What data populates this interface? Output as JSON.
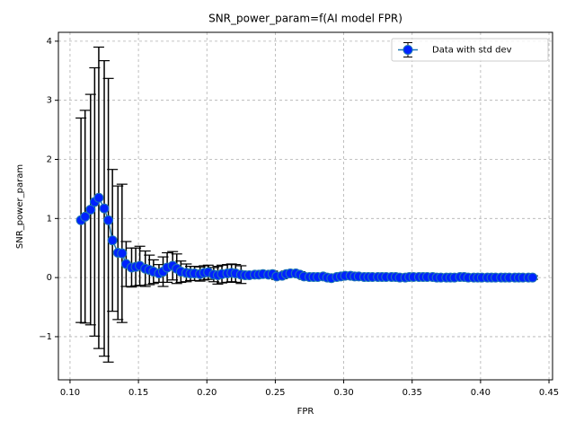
{
  "chart_data": {
    "type": "errorbar",
    "title": "SNR_power_param=f(AI model FPR)",
    "x_label": "FPR",
    "y_label": "SNR_power_param",
    "x": [
      0.108,
      0.111,
      0.115,
      0.118,
      0.121,
      0.125,
      0.128,
      0.131,
      0.135,
      0.138,
      0.141,
      0.145,
      0.148,
      0.151,
      0.155,
      0.158,
      0.161,
      0.165,
      0.168,
      0.171,
      0.175,
      0.178,
      0.181,
      0.185,
      0.188,
      0.191,
      0.195,
      0.198,
      0.201,
      0.205,
      0.208,
      0.211,
      0.215,
      0.218,
      0.221,
      0.225,
      0.228,
      0.231,
      0.235,
      0.238,
      0.241,
      0.245,
      0.248,
      0.251,
      0.255,
      0.258,
      0.261,
      0.265,
      0.268,
      0.271,
      0.275,
      0.278,
      0.281,
      0.285,
      0.288,
      0.291,
      0.295,
      0.298,
      0.301,
      0.305,
      0.308,
      0.311,
      0.315,
      0.318,
      0.321,
      0.325,
      0.328,
      0.331,
      0.335,
      0.338,
      0.341,
      0.345,
      0.348,
      0.351,
      0.355,
      0.358,
      0.361,
      0.365,
      0.368,
      0.371,
      0.375,
      0.378,
      0.381,
      0.385,
      0.388,
      0.391,
      0.395,
      0.398,
      0.401,
      0.405,
      0.408,
      0.411,
      0.415,
      0.418,
      0.421,
      0.425,
      0.428,
      0.431,
      0.435,
      0.438
    ],
    "series": [
      {
        "name": "Data with std dev",
        "color": "#1f77b4",
        "marker_color": "#0022ff",
        "error_color": "#000000",
        "values": [
          0.97,
          1.03,
          1.15,
          1.28,
          1.35,
          1.17,
          0.97,
          0.63,
          0.42,
          0.41,
          0.23,
          0.17,
          0.18,
          0.2,
          0.15,
          0.13,
          0.1,
          0.07,
          0.1,
          0.17,
          0.2,
          0.15,
          0.1,
          0.08,
          0.07,
          0.07,
          0.06,
          0.08,
          0.09,
          0.05,
          0.04,
          0.06,
          0.07,
          0.08,
          0.07,
          0.05,
          0.04,
          0.04,
          0.05,
          0.05,
          0.06,
          0.05,
          0.06,
          0.02,
          0.03,
          0.06,
          0.07,
          0.07,
          0.05,
          0.02,
          0.01,
          0.01,
          0.01,
          0.02,
          0,
          -0.01,
          0.01,
          0.02,
          0.03,
          0.03,
          0.02,
          0.02,
          0.01,
          0.01,
          0.01,
          0.01,
          0.01,
          0.01,
          0.01,
          0.01,
          0,
          0,
          0.01,
          0.01,
          0.01,
          0.01,
          0.01,
          0.01,
          0,
          0,
          0,
          0,
          0,
          0.01,
          0.01,
          0,
          0,
          0,
          0,
          0,
          0,
          0,
          0,
          0,
          0,
          0,
          0,
          0,
          0,
          0
        ],
        "errors": [
          1.73,
          1.8,
          1.95,
          2.27,
          2.55,
          2.5,
          2.4,
          1.2,
          1.13,
          1.17,
          0.38,
          0.33,
          0.32,
          0.33,
          0.3,
          0.25,
          0.2,
          0.15,
          0.25,
          0.25,
          0.24,
          0.25,
          0.18,
          0.15,
          0.12,
          0.12,
          0.12,
          0.12,
          0.12,
          0.12,
          0.15,
          0.15,
          0.15,
          0.15,
          0.15,
          0.15,
          0.05,
          0.05,
          0.05,
          0.05,
          0.05,
          0.05,
          0.05,
          0.05,
          0.05,
          0.05,
          0.05,
          0.05,
          0.05,
          0.05,
          0.03,
          0.03,
          0.03,
          0.03,
          0.03,
          0.03,
          0.03,
          0.03,
          0.03,
          0.03,
          0.03,
          0.03,
          0.03,
          0.03,
          0.03,
          0.03,
          0.03,
          0.03,
          0.03,
          0.03,
          0.03,
          0.03,
          0.03,
          0.03,
          0.03,
          0.03,
          0.03,
          0.03,
          0.03,
          0.03,
          0.03,
          0.03,
          0.03,
          0.03,
          0.03,
          0.03,
          0.03,
          0.03,
          0.03,
          0.03,
          0.03,
          0.03,
          0.03,
          0.03,
          0.03,
          0.03,
          0.03,
          0.03,
          0.03,
          0.03
        ]
      }
    ],
    "xlim": [
      0.0915,
      0.4526
    ],
    "ylim": [
      -1.73,
      4.15
    ],
    "xticks": [
      {
        "value": 0.1,
        "label": "0.10"
      },
      0.15,
      {
        "value": 0.2,
        "label": "0.20"
      },
      0.25,
      {
        "value": 0.3,
        "label": "0.30"
      },
      0.35,
      {
        "value": 0.4,
        "label": "0.40"
      },
      0.45
    ],
    "yticks": [
      {
        "value": -1,
        "label": "−1"
      },
      0,
      1,
      2,
      3,
      4
    ],
    "grid": true,
    "legend": "upper right"
  }
}
